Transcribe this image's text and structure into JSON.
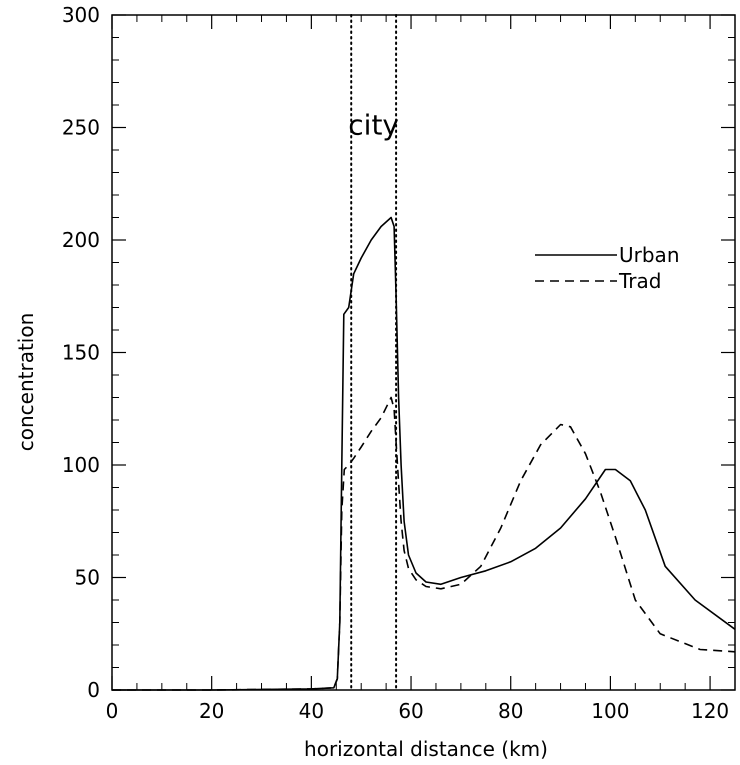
{
  "chart_data": {
    "type": "line",
    "title": "",
    "xlabel": "horizontal distance (km)",
    "ylabel": "concentration",
    "xlim": [
      0,
      125
    ],
    "ylim": [
      0,
      300
    ],
    "xticks": [
      0,
      20,
      40,
      60,
      80,
      100,
      120
    ],
    "yticks": [
      0,
      50,
      100,
      150,
      200,
      250,
      300
    ],
    "grid": false,
    "legend_placement": "right",
    "colors": {
      "line": "#000000",
      "background": "#ffffff"
    },
    "series": [
      {
        "name": "Urban",
        "style": "solid",
        "x": [
          0,
          20,
          40,
          44.5,
          45.2,
          45.7,
          46.1,
          46.5,
          47.5,
          48.5,
          50,
          52,
          54,
          56,
          56.6,
          57,
          57.5,
          58,
          58.6,
          59.5,
          61,
          63,
          66,
          70,
          75,
          80,
          85,
          90,
          95,
          99,
          101,
          104,
          107,
          111,
          117,
          125
        ],
        "y": [
          0,
          0,
          0.5,
          1,
          5,
          30,
          100,
          167,
          170,
          185,
          192,
          200,
          206,
          210,
          206,
          175,
          130,
          100,
          75,
          60,
          52,
          48,
          47,
          50,
          53,
          57,
          63,
          72,
          85,
          98,
          98,
          93,
          80,
          55,
          40,
          27
        ]
      },
      {
        "name": "Trad",
        "style": "dashed",
        "x": [
          0,
          20,
          40,
          44.5,
          45.2,
          45.7,
          46.1,
          46.6,
          47.5,
          48.5,
          50,
          52,
          54,
          56,
          56.6,
          57,
          57.5,
          58,
          58.6,
          59.5,
          61,
          63,
          66,
          70,
          74,
          78,
          82,
          86,
          90,
          92,
          95,
          98,
          101,
          105,
          110,
          118,
          125
        ],
        "y": [
          0,
          0,
          0.5,
          1,
          5,
          30,
          80,
          98,
          100,
          103,
          108,
          115,
          121,
          130,
          125,
          110,
          92,
          75,
          62,
          54,
          49,
          46,
          45,
          47,
          55,
          72,
          93,
          109,
          118,
          117,
          105,
          88,
          68,
          40,
          25,
          18,
          17
        ]
      }
    ],
    "annotations": [
      {
        "text": "city",
        "x": 52.5,
        "y": 247
      }
    ],
    "reference_lines": [
      {
        "axis": "x",
        "value": 48,
        "style": "dotted"
      },
      {
        "axis": "x",
        "value": 57,
        "style": "dotted"
      }
    ]
  }
}
